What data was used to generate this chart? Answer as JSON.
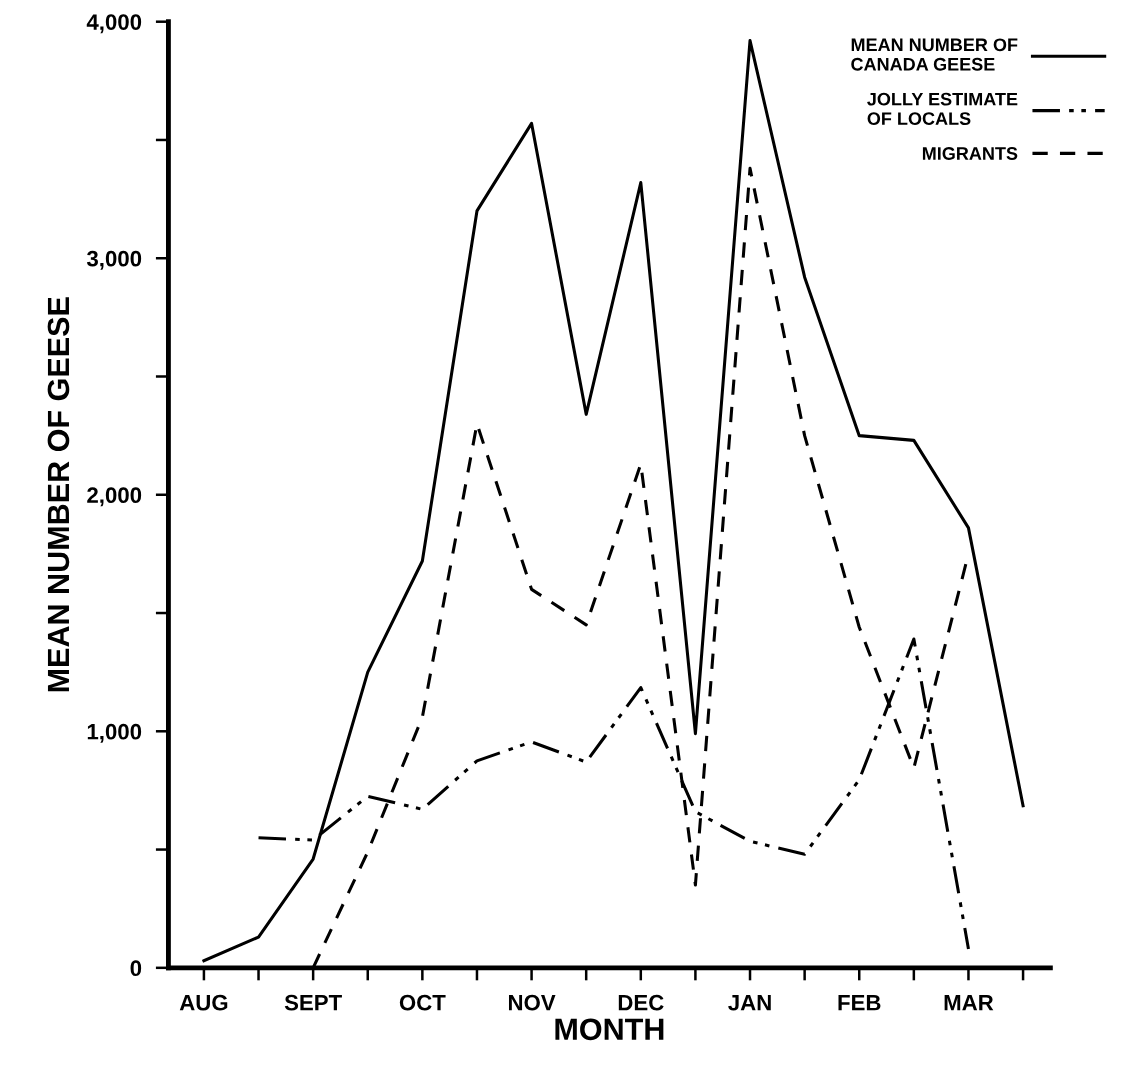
{
  "chart_data": {
    "type": "line",
    "xlabel": "MONTH",
    "ylabel": "MEAN NUMBER OF GEESE",
    "categories": [
      "AUG",
      null,
      "SEPT",
      null,
      "OCT",
      null,
      "NOV",
      null,
      "DEC",
      null,
      "JAN",
      null,
      "FEB",
      null,
      "MAR",
      null
    ],
    "series": [
      {
        "name": "MEAN NUMBER OF CANADA GEESE",
        "color": "#000000",
        "line_style": "solid",
        "values": [
          30,
          130,
          460,
          1250,
          1720,
          3200,
          3570,
          2340,
          3320,
          990,
          3920,
          2920,
          2250,
          2230,
          1860,
          685
        ]
      },
      {
        "name": "JOLLY ESTIMATE OF LOCALS",
        "color": "#000000",
        "line_style": "dashdotdot",
        "values": [
          null,
          550,
          540,
          725,
          670,
          875,
          955,
          870,
          1185,
          660,
          535,
          480,
          795,
          1390,
          80,
          null
        ]
      },
      {
        "name": "MIGRANTS",
        "color": "#000000",
        "line_style": "dashed",
        "values": [
          null,
          null,
          0,
          490,
          1060,
          2300,
          1600,
          1450,
          2130,
          350,
          3380,
          2250,
          1440,
          845,
          1750,
          null
        ]
      }
    ],
    "ylim": [
      0,
      4000
    ],
    "yticks": [
      0,
      {
        "value": 500,
        "label": null
      },
      {
        "value": 1000,
        "label": "1,000"
      },
      {
        "value": 1500,
        "label": null
      },
      {
        "value": 2000,
        "label": "2,000"
      },
      {
        "value": 2500,
        "label": null
      },
      {
        "value": 3000,
        "label": "3,000"
      },
      {
        "value": 3500,
        "label": null
      },
      {
        "value": 4000,
        "label": "4,000"
      }
    ],
    "grid": false,
    "legend": "top right",
    "marker": "none"
  }
}
